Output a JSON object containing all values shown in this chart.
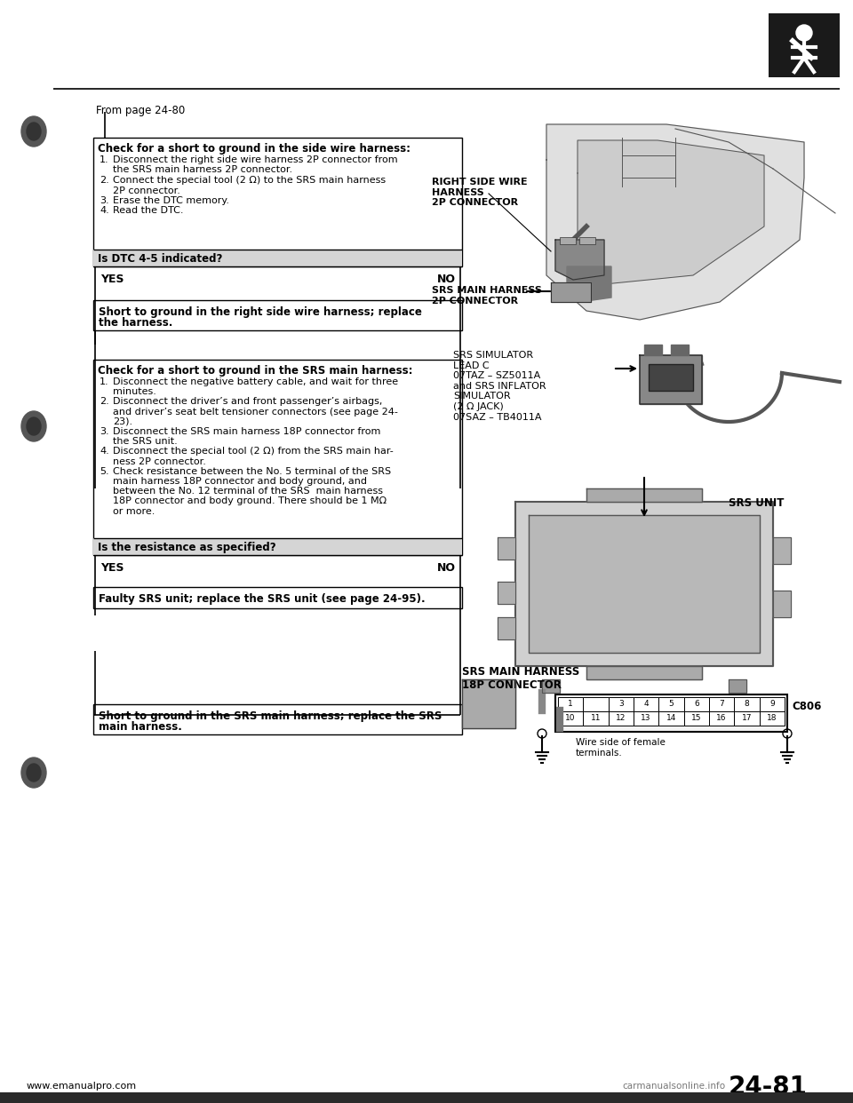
{
  "page_number": "24-81",
  "from_page": "From page 24-80",
  "website": "www.emanualpro.com",
  "watermark": "carmanualsonline.info",
  "box1_title": "Check for a short to ground in the side wire harness:",
  "box1_steps": [
    [
      "1.",
      "Disconnect the right side wire harness 2P connector from",
      "   the SRS main harness 2P connector."
    ],
    [
      "2.",
      "Connect the special tool (2 Ω) to the SRS main harness",
      "   2P connector."
    ],
    [
      "3.",
      "Erase the DTC memory."
    ],
    [
      "4.",
      "Read the DTC."
    ]
  ],
  "box1_question": "Is DTC 4-5 indicated?",
  "box1_yes": "YES",
  "box1_no": "NO",
  "box1_result_line1": "Short to ground in the right side wire harness; replace",
  "box1_result_line2": "the harness.",
  "box2_title": "Check for a short to ground in the SRS main harness:",
  "box2_steps": [
    [
      "1.",
      "Disconnect the negative battery cable, and wait for three",
      "   minutes."
    ],
    [
      "2.",
      "Disconnect the driver’s and front passenger’s airbags,",
      "   and driver’s seat belt tensioner connectors (see page 24-",
      "   23)."
    ],
    [
      "3.",
      "Disconnect the SRS main harness 18P connector from",
      "   the SRS unit."
    ],
    [
      "4.",
      "Disconnect the special tool (2 Ω) from the SRS main har-",
      "   ness 2P connector."
    ],
    [
      "5.",
      "Check resistance between the No. 5 terminal of the SRS",
      "   main harness 18P connector and body ground, and",
      "   between the No. 12 terminal of the SRS  main harness",
      "   18P connector and body ground. There should be 1 MΩ",
      "   or more."
    ]
  ],
  "box2_question": "Is the resistance as specified?",
  "box2_yes": "YES",
  "box2_no": "NO",
  "box2_result_yes_line1": "Faulty SRS unit; replace the SRS unit (see page 24-95).",
  "box2_result_no_line1": "Short to ground in the SRS main harness; replace the SRS",
  "box2_result_no_line2": "main harness.",
  "label_right_side_wire": "RIGHT SIDE WIRE\nHARNESS\n2P CONNECTOR",
  "label_srs_main_2p": "SRS MAIN HARNESS\n2P CONNECTOR",
  "label_srs_simulator": "SRS SIMULATOR\nLEAD C\n07TAZ – SZ5011A\nand SRS INFLATOR\nSIMULATOR\n(2 Ω JACK)\n07SAZ – TB4011A",
  "label_srs_unit": "SRS UNIT",
  "label_srs_main_18p": "SRS MAIN HARNESS\n18P CONNECTOR",
  "label_c806": "C806",
  "label_wire_female_line1": "Wire side of female",
  "label_wire_female_line2": "terminals.",
  "connector_row1": [
    "1",
    "3",
    "4",
    "5",
    "6",
    "7",
    "8",
    "9"
  ],
  "connector_row2": [
    "10",
    "11",
    "12",
    "13",
    "14",
    "15",
    "16",
    "17",
    "18"
  ],
  "bg_color": "#ffffff",
  "text_color": "#000000",
  "gray_fill": "#e8e8e8",
  "dark_fill": "#1a1a1a"
}
